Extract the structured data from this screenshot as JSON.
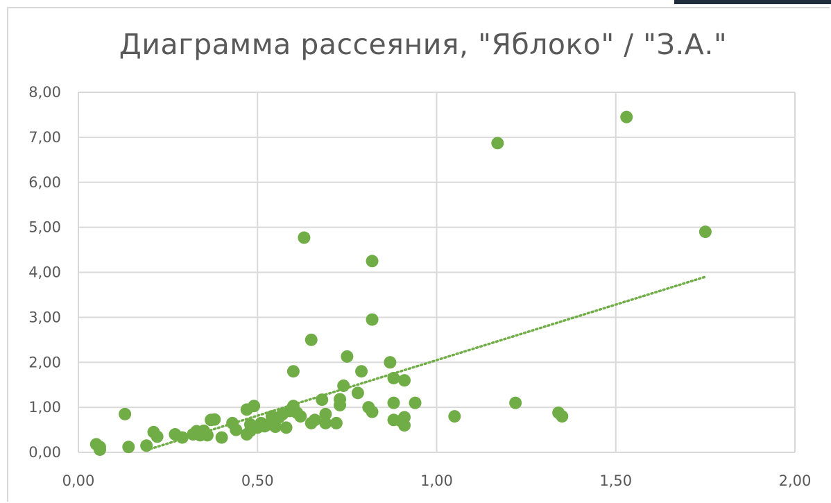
{
  "chart_data": {
    "type": "scatter",
    "title": "Диаграмма рассеяния, \"Яблоко\"  / \"З.А.\"",
    "xlabel": "",
    "ylabel": "",
    "xlim": [
      0,
      2
    ],
    "ylim": [
      0,
      8
    ],
    "x_ticks": [
      "0,00",
      "0,50",
      "1,00",
      "1,50",
      "2,00"
    ],
    "y_ticks": [
      "0,00",
      "1,00",
      "2,00",
      "3,00",
      "4,00",
      "5,00",
      "6,00",
      "7,00",
      "8,00"
    ],
    "grid": true,
    "legend": "none",
    "marker_color": "#70ad47",
    "trendline": {
      "type": "linear",
      "style": "dotted",
      "color": "#70ad47",
      "from": [
        0.19,
        0.05
      ],
      "to": [
        1.75,
        3.9
      ]
    },
    "series": [
      {
        "points": [
          [
            0.05,
            0.18
          ],
          [
            0.06,
            0.12
          ],
          [
            0.06,
            0.06
          ],
          [
            0.13,
            0.85
          ],
          [
            0.14,
            0.12
          ],
          [
            0.19,
            0.15
          ],
          [
            0.21,
            0.45
          ],
          [
            0.22,
            0.35
          ],
          [
            0.27,
            0.4
          ],
          [
            0.29,
            0.33
          ],
          [
            0.32,
            0.4
          ],
          [
            0.33,
            0.47
          ],
          [
            0.34,
            0.38
          ],
          [
            0.35,
            0.48
          ],
          [
            0.36,
            0.38
          ],
          [
            0.37,
            0.72
          ],
          [
            0.38,
            0.73
          ],
          [
            0.4,
            0.33
          ],
          [
            0.43,
            0.65
          ],
          [
            0.44,
            0.5
          ],
          [
            0.47,
            0.95
          ],
          [
            0.47,
            0.4
          ],
          [
            0.48,
            0.62
          ],
          [
            0.48,
            0.48
          ],
          [
            0.49,
            1.03
          ],
          [
            0.5,
            0.55
          ],
          [
            0.51,
            0.65
          ],
          [
            0.52,
            0.58
          ],
          [
            0.53,
            0.62
          ],
          [
            0.54,
            0.8
          ],
          [
            0.55,
            0.57
          ],
          [
            0.56,
            0.78
          ],
          [
            0.57,
            0.85
          ],
          [
            0.58,
            0.55
          ],
          [
            0.59,
            0.92
          ],
          [
            0.6,
            1.03
          ],
          [
            0.6,
            1.8
          ],
          [
            0.61,
            0.88
          ],
          [
            0.62,
            0.8
          ],
          [
            0.63,
            4.77
          ],
          [
            0.65,
            0.65
          ],
          [
            0.65,
            2.5
          ],
          [
            0.66,
            0.72
          ],
          [
            0.68,
            1.17
          ],
          [
            0.69,
            0.85
          ],
          [
            0.69,
            0.65
          ],
          [
            0.72,
            0.65
          ],
          [
            0.73,
            1.18
          ],
          [
            0.73,
            1.05
          ],
          [
            0.74,
            1.48
          ],
          [
            0.75,
            2.13
          ],
          [
            0.78,
            1.32
          ],
          [
            0.79,
            1.8
          ],
          [
            0.81,
            1.0
          ],
          [
            0.82,
            0.9
          ],
          [
            0.82,
            2.95
          ],
          [
            0.82,
            4.25
          ],
          [
            0.87,
            2.0
          ],
          [
            0.88,
            1.65
          ],
          [
            0.88,
            1.1
          ],
          [
            0.88,
            0.72
          ],
          [
            0.9,
            0.7
          ],
          [
            0.91,
            0.78
          ],
          [
            0.91,
            1.6
          ],
          [
            0.91,
            0.6
          ],
          [
            0.94,
            1.1
          ],
          [
            1.05,
            0.8
          ],
          [
            1.17,
            6.87
          ],
          [
            1.22,
            1.1
          ],
          [
            1.34,
            0.88
          ],
          [
            1.35,
            0.8
          ],
          [
            1.53,
            7.45
          ],
          [
            1.75,
            4.9
          ]
        ]
      }
    ]
  }
}
